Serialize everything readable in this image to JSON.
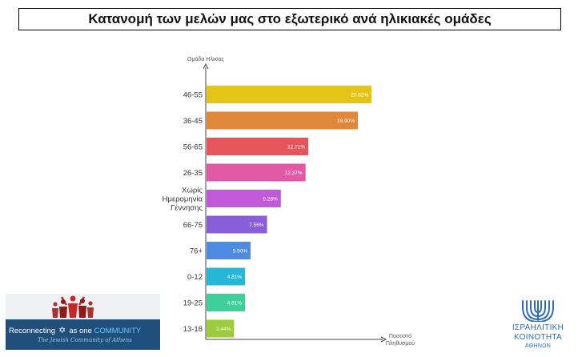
{
  "title": "Κατανομή των μελών μας στο εξωτερικό ανά ηλικιακές ομάδες",
  "chart_data": {
    "type": "bar",
    "orientation": "horizontal",
    "ylabel": "Ομάδα Ηλικίας",
    "xlabel": [
      "Ποσοστό",
      "Πληθυσμού"
    ],
    "xlim": [
      0,
      30
    ],
    "categories": [
      [
        "46-55"
      ],
      [
        "36-45"
      ],
      [
        "56-65"
      ],
      [
        "26-35"
      ],
      [
        "Χωρίς",
        "Ημερομηνία",
        "Γέννησης"
      ],
      [
        "66-75"
      ],
      [
        "76+"
      ],
      [
        "0-12"
      ],
      [
        "19-25"
      ],
      [
        "13-18"
      ]
    ],
    "values": [
      20.62,
      18.9,
      12.71,
      12.37,
      9.28,
      7.56,
      5.5,
      4.81,
      4.81,
      3.44
    ],
    "value_labels": [
      "20.62%",
      "18.90%",
      "12.71%",
      "12.37%",
      "9.28%",
      "7.56%",
      "5.50%",
      "4.81%",
      "4.81%",
      "3.44%"
    ],
    "colors": [
      "#e5c418",
      "#e0873a",
      "#e6555a",
      "#e25aa5",
      "#c05ad8",
      "#8a5ddb",
      "#4f8be0",
      "#27b7d6",
      "#3ecf9c",
      "#9ccb3c"
    ]
  },
  "logo_left": {
    "line1_a": "Reconnecting",
    "line1_b": "as one",
    "line1_c": "COMMUNITY",
    "line2": "The Jewish Community of Athens"
  },
  "logo_right": {
    "line1": "ΙΣΡΑΗΛΙΤΙΚΗ",
    "line2": "ΚΟΙΝΟΤΗΤΑ",
    "line3": "ΑΘΗΝΩΝ"
  },
  "brand_colors": {
    "banner": "#1f4f7a",
    "accent": "#6ec6ff",
    "menorah": "#2f6db3"
  }
}
